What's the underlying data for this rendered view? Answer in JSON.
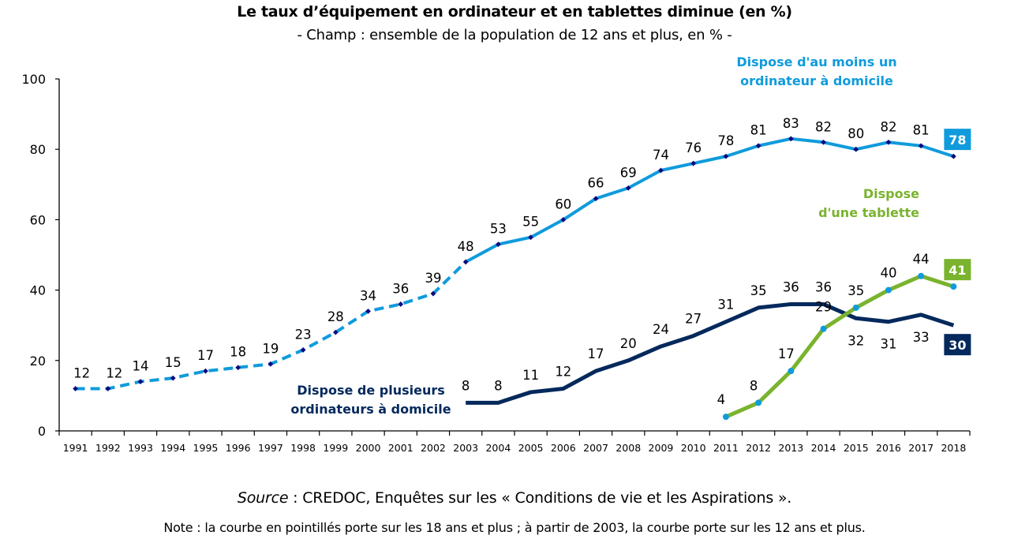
{
  "chart_data": {
    "type": "line",
    "title": "Le taux d’équipement en ordinateur et en tablettes diminue (en %)",
    "subtitle": "- Champ : ensemble de la population de 12 ans et plus, en % -",
    "xlabel": "",
    "ylabel": "",
    "ylim": [
      0,
      100
    ],
    "yticks": [
      0,
      20,
      40,
      60,
      80,
      100
    ],
    "grid": false,
    "categories": [
      "1991",
      "1992",
      "1993",
      "1994",
      "1995",
      "1996",
      "1997",
      "1998",
      "1999",
      "2000",
      "2001",
      "2002",
      "2003",
      "2004",
      "2005",
      "2006",
      "2007",
      "2008",
      "2009",
      "2010",
      "2011",
      "2012",
      "2013",
      "2014",
      "2015",
      "2016",
      "2017",
      "2018"
    ],
    "series": [
      {
        "name": "Dispose d'au moins un ordinateur à domicile",
        "name_lines": [
          "Dispose d'au moins un",
          "ordinateur  à domicile"
        ],
        "color": "#0f9bdc",
        "marker_color": "#0a0a80",
        "dashed_until": "2003",
        "start": "1991",
        "values": [
          12,
          12,
          14,
          15,
          17,
          18,
          19,
          23,
          28,
          34,
          36,
          39,
          48,
          53,
          55,
          60,
          66,
          69,
          74,
          76,
          78,
          81,
          83,
          82,
          80,
          82,
          81,
          78
        ],
        "end_label": "78",
        "end_label_bg": "#0f9bdc"
      },
      {
        "name": "Dispose de plusieurs ordinateurs à domicile",
        "name_lines": [
          "Dispose de plusieurs",
          "ordinateurs  à domicile"
        ],
        "color": "#04295c",
        "start": "2003",
        "values": [
          8,
          8,
          11,
          12,
          17,
          20,
          24,
          27,
          31,
          35,
          36,
          36,
          32,
          31,
          33,
          30
        ],
        "end_label": "30",
        "end_label_bg": "#04295c"
      },
      {
        "name": "Dispose d'une tablette",
        "name_lines": [
          "Dispose",
          "d'une  tablette"
        ],
        "color": "#7ab32e",
        "marker_color": "#0f9bdc",
        "start": "2011",
        "values": [
          4,
          8,
          17,
          29,
          35,
          40,
          44,
          41
        ],
        "end_label": "41",
        "end_label_bg": "#7ab32e"
      }
    ],
    "source_label": "Source",
    "source_text": " : CREDOC, Enquêtes sur les « Conditions de vie et les Aspirations ».",
    "note": "Note : la courbe en pointillés porte sur les 18 ans et plus ; à partir de 2003, la courbe porte sur les 12 ans et plus."
  }
}
